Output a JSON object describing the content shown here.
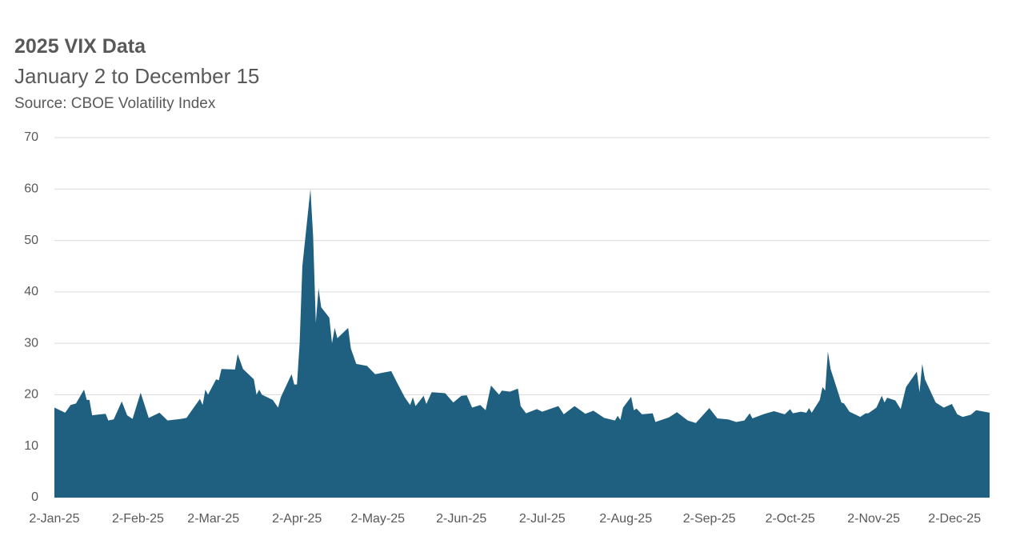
{
  "chart_data": {
    "type": "area",
    "title": "2025 VIX Data",
    "subtitle": "January 2 to December 15",
    "source": "Source: CBOE Volatility Index",
    "color": "#1f5f7f",
    "grid": true,
    "xlim": [
      "2025-01-02",
      "2025-12-15"
    ],
    "xticks": [
      {
        "value": "2025-01-02",
        "label": "2-Jan-25"
      },
      {
        "value": "2025-02-02",
        "label": "2-Feb-25"
      },
      {
        "value": "2025-03-02",
        "label": "2-Mar-25"
      },
      {
        "value": "2025-04-02",
        "label": "2-Apr-25"
      },
      {
        "value": "2025-05-02",
        "label": "2-May-25"
      },
      {
        "value": "2025-06-02",
        "label": "2-Jun-25"
      },
      {
        "value": "2025-07-02",
        "label": "2-Jul-25"
      },
      {
        "value": "2025-08-02",
        "label": "2-Aug-25"
      },
      {
        "value": "2025-09-02",
        "label": "2-Sep-25"
      },
      {
        "value": "2025-10-02",
        "label": "2-Oct-25"
      },
      {
        "value": "2025-11-02",
        "label": "2-Nov-25"
      },
      {
        "value": "2025-12-02",
        "label": "2-Dec-25"
      }
    ],
    "ylim": [
      0,
      70
    ],
    "yticks": [
      0,
      10,
      20,
      30,
      40,
      50,
      60,
      70
    ],
    "x": [
      "2025-01-02",
      "2025-01-06",
      "2025-01-08",
      "2025-01-10",
      "2025-01-13",
      "2025-01-14",
      "2025-01-15",
      "2025-01-16",
      "2025-01-21",
      "2025-01-22",
      "2025-01-24",
      "2025-01-27",
      "2025-01-29",
      "2025-01-31",
      "2025-02-03",
      "2025-02-06",
      "2025-02-10",
      "2025-02-13",
      "2025-02-18",
      "2025-02-20",
      "2025-02-25",
      "2025-02-26",
      "2025-02-27",
      "2025-02-28",
      "2025-03-03",
      "2025-03-04",
      "2025-03-05",
      "2025-03-10",
      "2025-03-11",
      "2025-03-13",
      "2025-03-17",
      "2025-03-18",
      "2025-03-19",
      "2025-03-20",
      "2025-03-24",
      "2025-03-26",
      "2025-03-27",
      "2025-03-31",
      "2025-04-01",
      "2025-04-02",
      "2025-04-03",
      "2025-04-04",
      "2025-04-07",
      "2025-04-08",
      "2025-04-09",
      "2025-04-10",
      "2025-04-11",
      "2025-04-14",
      "2025-04-15",
      "2025-04-16",
      "2025-04-17",
      "2025-04-21",
      "2025-04-22",
      "2025-04-24",
      "2025-04-28",
      "2025-05-01",
      "2025-05-05",
      "2025-05-07",
      "2025-05-09",
      "2025-05-12",
      "2025-05-14",
      "2025-05-15",
      "2025-05-16",
      "2025-05-19",
      "2025-05-20",
      "2025-05-22",
      "2025-05-27",
      "2025-05-30",
      "2025-06-02",
      "2025-06-04",
      "2025-06-06",
      "2025-06-09",
      "2025-06-11",
      "2025-06-13",
      "2025-06-16",
      "2025-06-17",
      "2025-06-20",
      "2025-06-23",
      "2025-06-24",
      "2025-06-26",
      "2025-06-30",
      "2025-07-02",
      "2025-07-08",
      "2025-07-10",
      "2025-07-14",
      "2025-07-18",
      "2025-07-21",
      "2025-07-25",
      "2025-07-29",
      "2025-07-30",
      "2025-07-31",
      "2025-08-01",
      "2025-08-04",
      "2025-08-05",
      "2025-08-06",
      "2025-08-08",
      "2025-08-12",
      "2025-08-13",
      "2025-08-18",
      "2025-08-21",
      "2025-08-25",
      "2025-08-28",
      "2025-09-02",
      "2025-09-05",
      "2025-09-09",
      "2025-09-12",
      "2025-09-15",
      "2025-09-17",
      "2025-09-18",
      "2025-09-22",
      "2025-09-24",
      "2025-09-26",
      "2025-09-30",
      "2025-10-02",
      "2025-10-03",
      "2025-10-06",
      "2025-10-08",
      "2025-10-09",
      "2025-10-10",
      "2025-10-13",
      "2025-10-14",
      "2025-10-15",
      "2025-10-16",
      "2025-10-17",
      "2025-10-21",
      "2025-10-22",
      "2025-10-24",
      "2025-10-28",
      "2025-10-30",
      "2025-10-31",
      "2025-11-03",
      "2025-11-05",
      "2025-11-06",
      "2025-11-07",
      "2025-11-10",
      "2025-11-12",
      "2025-11-14",
      "2025-11-18",
      "2025-11-19",
      "2025-11-20",
      "2025-11-21",
      "2025-11-25",
      "2025-11-28",
      "2025-12-01",
      "2025-12-03",
      "2025-12-05",
      "2025-12-08",
      "2025-12-10",
      "2025-12-15"
    ],
    "values": [
      17.5,
      16.5,
      18,
      18.3,
      21,
      19,
      19,
      16,
      16.3,
      15,
      15.2,
      18.7,
      16,
      15.3,
      20.4,
      15.5,
      16.5,
      15,
      15.3,
      15.5,
      19.2,
      18,
      21,
      20,
      23,
      22.8,
      25,
      24.9,
      27.9,
      25,
      23,
      20,
      21,
      20,
      19,
      17.5,
      19.5,
      24,
      22,
      22,
      30,
      45,
      60,
      50.8,
      34,
      40.7,
      37,
      35,
      30,
      33,
      31,
      33,
      29,
      26,
      25.6,
      24,
      24.4,
      24.6,
      22.5,
      19.5,
      18,
      19.5,
      17.8,
      19.8,
      18.2,
      20.5,
      20.3,
      18.5,
      19.8,
      19.9,
      17.5,
      18,
      17,
      21.8,
      20,
      20.8,
      20.6,
      21.2,
      17.8,
      16.4,
      17.2,
      16.7,
      17.8,
      16.2,
      17.8,
      16.3,
      16.9,
      15.5,
      15,
      15.9,
      15.1,
      17.5,
      19.6,
      17,
      17.3,
      16.2,
      16.4,
      14.7,
      15.6,
      16.6,
      15,
      14.5,
      17.4,
      15.4,
      15.2,
      14.7,
      15,
      16.4,
      15.4,
      16.2,
      16.5,
      16.8,
      16.2,
      17.2,
      16.4,
      16.7,
      16.5,
      17.4,
      16.5,
      19,
      21.5,
      20.8,
      28.4,
      25,
      18.5,
      18.3,
      16.7,
      15.7,
      16.4,
      16.4,
      17.5,
      19.8,
      18.5,
      19.4,
      18.9,
      17.2,
      21.5,
      24.5,
      20.5,
      26,
      23,
      18.5,
      17.5,
      18.2,
      16.2,
      15.7,
      16.1,
      17,
      16.5
    ]
  }
}
